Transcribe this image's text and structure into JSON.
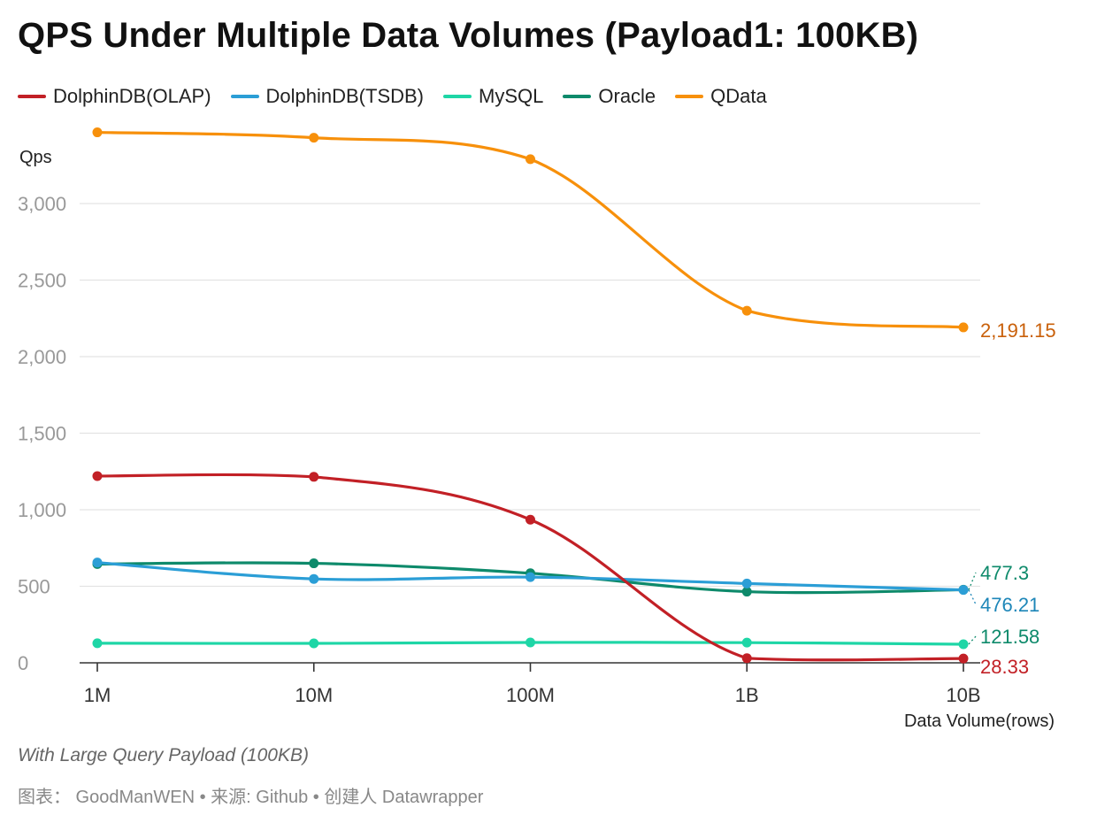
{
  "title": "QPS Under Multiple Data Volumes (Payload1: 100KB)",
  "notes": "With Large Query Payload (100KB)",
  "footer": "图表： GoodManWEN • 来源: Github • 创建人 Datawrapper",
  "chart_data": {
    "type": "line",
    "title": "QPS Under Multiple Data Volumes (Payload1: 100KB)",
    "xlabel": "Data Volume(rows)",
    "ylabel": "Qps",
    "categories": [
      "1M",
      "10M",
      "100M",
      "1B",
      "10B"
    ],
    "ylim": [
      0,
      3500
    ],
    "yticks": [
      0,
      500,
      1000,
      1500,
      2000,
      2500,
      3000
    ],
    "ytick_labels": [
      "0",
      "500",
      "1,000",
      "1,500",
      "2,000",
      "2,500",
      "3,000"
    ],
    "grid": true,
    "legend_position": "top-left",
    "series": [
      {
        "name": "DolphinDB(OLAP)",
        "color": "#c22026",
        "values": [
          1220,
          1215,
          935,
          30,
          28.33
        ],
        "end_label": "28.33"
      },
      {
        "name": "DolphinDB(TSDB)",
        "color": "#2b9ed6",
        "values": [
          655,
          548,
          560,
          518,
          476.21
        ],
        "end_label": "476.21"
      },
      {
        "name": "MySQL",
        "color": "#1ed6a6",
        "values": [
          128,
          127,
          133,
          132,
          121.58
        ],
        "end_label": "121.58"
      },
      {
        "name": "Oracle",
        "color": "#0e8a6b",
        "values": [
          645,
          650,
          585,
          465,
          477.3
        ],
        "end_label": "477.3"
      },
      {
        "name": "QData",
        "color": "#f7900b",
        "values": [
          3465,
          3430,
          3290,
          2300,
          2191.15
        ],
        "end_label": "2,191.15"
      }
    ]
  }
}
